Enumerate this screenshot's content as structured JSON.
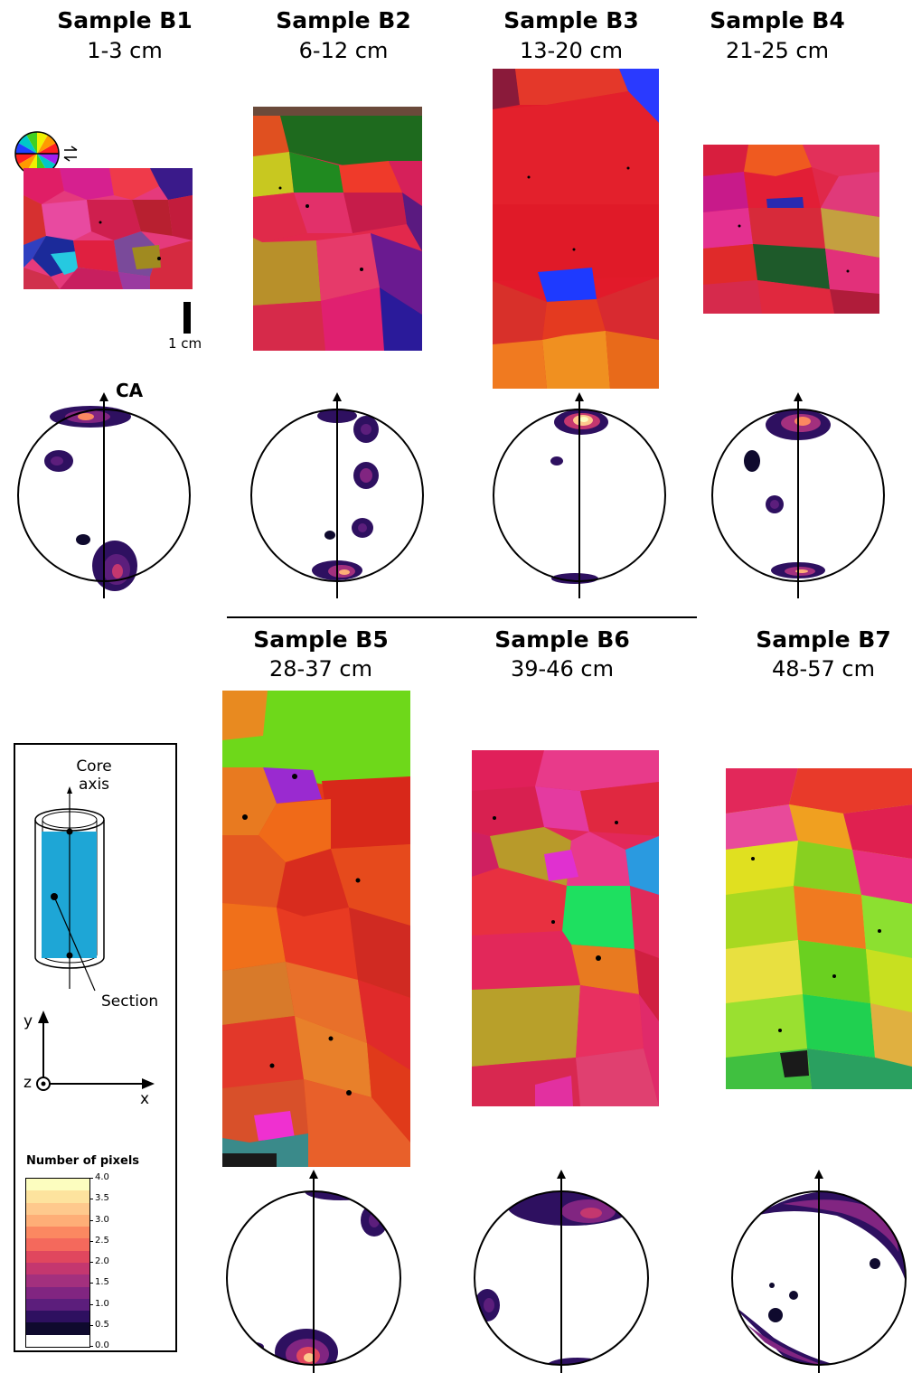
{
  "figure": {
    "samples": [
      {
        "id": "B1",
        "title": "Sample B1",
        "depth": "1-3 cm"
      },
      {
        "id": "B2",
        "title": "Sample B2",
        "depth": "6-12 cm"
      },
      {
        "id": "B3",
        "title": "Sample B3",
        "depth": "13-20 cm"
      },
      {
        "id": "B4",
        "title": "Sample B4",
        "depth": "21-25 cm"
      },
      {
        "id": "B5",
        "title": "Sample B5",
        "depth": "28-37 cm"
      },
      {
        "id": "B6",
        "title": "Sample B6",
        "depth": "39-46 cm"
      },
      {
        "id": "B7",
        "title": "Sample B7",
        "depth": "48-57 cm"
      }
    ],
    "ca_label": "CA",
    "scale_bar_label": "1 cm",
    "legend": {
      "core_axis_label": "Core\naxis",
      "section_label": "Section",
      "axis_y": "y",
      "axis_x": "x",
      "axis_z": "z",
      "colorbar_title": "Number of pixels",
      "colorbar_ticks": [
        "4.0",
        "3.5",
        "3.0",
        "2.5",
        "2.0",
        "1.5",
        "1.0",
        "0.5",
        "0.0"
      ],
      "colorbar_colors": [
        "#fcfdbf",
        "#fde39e",
        "#fec98d",
        "#feae77",
        "#fb8861",
        "#f4695c",
        "#e0475e",
        "#c4376f",
        "#a3307e",
        "#812581",
        "#5c1e7c",
        "#2e1060",
        "#0f0a2e",
        "#ffffff"
      ]
    },
    "ice_colors": [
      "#e01e2a",
      "#d81b3e",
      "#e8284f",
      "#df3a1c",
      "#ff3b2f",
      "#b81f3a",
      "#e03d8c",
      "#ef4fb0",
      "#f01078",
      "#c21480"
    ]
  }
}
